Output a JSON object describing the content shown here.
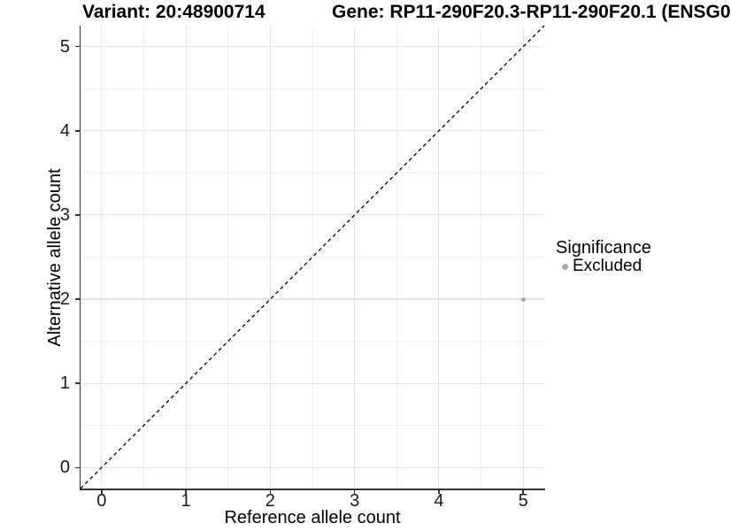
{
  "chart_data": {
    "type": "scatter",
    "title_left": "Variant: 20:48900714",
    "title_right": "Gene: RP11-290F20.3-RP11-290F20.1 (ENSG0",
    "xlabel": "Reference allele count",
    "ylabel": "Alternative allele count",
    "xlim": [
      -0.25,
      5.25
    ],
    "ylim": [
      -0.25,
      5.25
    ],
    "x_ticks": [
      0,
      1,
      2,
      3,
      4,
      5
    ],
    "y_ticks": [
      0,
      1,
      2,
      3,
      4,
      5
    ],
    "x_minor_gridlines": [
      0.5,
      1.5,
      2.5,
      3.5,
      4.5
    ],
    "y_minor_gridlines": [
      0.5,
      1.5,
      2.5,
      3.5,
      4.5
    ],
    "grid": "on",
    "points": [
      {
        "x": 5,
        "y": 2,
        "significance": "Excluded"
      }
    ],
    "reference_line": {
      "kind": "identity-diagonal",
      "from": [
        -0.25,
        -0.25
      ],
      "to": [
        5.25,
        5.25
      ],
      "style": "dashed",
      "color": "#000000"
    },
    "legend": {
      "title": "Significance",
      "position": "right",
      "items": [
        {
          "label": "Excluded",
          "color": "#a8a8a8"
        }
      ]
    },
    "colors": {
      "background": "#ffffff",
      "grid_major": "#e4e4e4",
      "grid_minor": "#efefef",
      "axis_line": "#333333",
      "tick_text": "#1a1a1a",
      "title_text": "#000000",
      "point": "#a8a8a8"
    }
  }
}
